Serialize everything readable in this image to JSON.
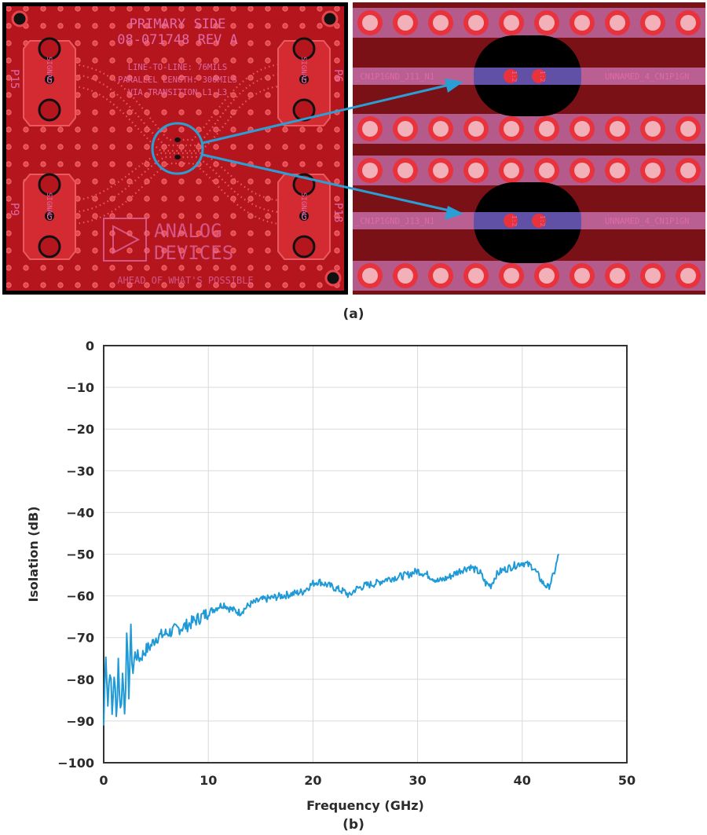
{
  "figure_a": {
    "caption": "(a)",
    "board": {
      "title_line1": "PRIMARY SIDE",
      "title_line2": "08-071748 REV A",
      "spec_line1": "LINE-TO-LINE: 76MILS",
      "spec_line2": "PARALLEL LENGTH: 300MILS",
      "spec_line3": "VIA TRANSITION L1-L3",
      "port_tl": "P15",
      "port_tr": "P6",
      "port_bl": "P9",
      "port_br": "P18",
      "logo_line1": "ANALOG",
      "logo_line2": "DEVICES",
      "bottom_text": "AHEAD OF WHAT'S POSSIBLE",
      "pad_signal": "SIGNAL",
      "pad_g": "G",
      "colors": {
        "board": "#b5161e",
        "silk": "#e06aa6"
      }
    },
    "zoom": {
      "net_top_left": "_CN1P1GND_J11_N1",
      "net_top_right": "UNNAMED_4_CN1P1GN",
      "net_bot_left": "_CN1P1GND_J13_N1",
      "net_bot_right": "UNNAMED_4_CN1P1GN",
      "via_label_1": "1:2",
      "via_label_2": "1:2",
      "colors": {
        "base": "#7a1116",
        "pad": "#e8323c",
        "trace": "#c068a0",
        "arrow": "#2a9fd6"
      }
    }
  },
  "figure_b": {
    "caption": "(b)"
  },
  "chart_data": {
    "type": "line",
    "title": "",
    "xlabel": "Frequency (GHz)",
    "ylabel": "Isolation (dB)",
    "xlim": [
      0,
      50
    ],
    "ylim": [
      -100,
      0
    ],
    "x_ticks": [
      0,
      10,
      20,
      30,
      40,
      50
    ],
    "y_ticks": [
      0,
      -10,
      -20,
      -30,
      -40,
      -50,
      -60,
      -70,
      -80,
      -90,
      -100
    ],
    "x_tick_labels": [
      "0",
      "10",
      "20",
      "30",
      "40",
      "50"
    ],
    "y_tick_labels": [
      "0",
      "−10",
      "−20",
      "−30",
      "−40",
      "−50",
      "−60",
      "−70",
      "−80",
      "−90",
      "−100"
    ],
    "grid": true,
    "legend": "none",
    "series": [
      {
        "color": "#1f9ad6",
        "x": [
          0,
          0.2,
          0.4,
          0.6,
          0.8,
          1.0,
          1.2,
          1.4,
          1.6,
          1.8,
          2.0,
          2.2,
          2.4,
          2.6,
          2.8,
          3.0,
          3.5,
          4,
          4.5,
          5,
          6,
          7,
          8,
          9,
          10,
          11,
          11.5,
          12,
          13,
          14,
          15,
          16,
          17,
          18,
          19,
          20,
          20.5,
          21,
          22,
          23,
          23.5,
          24,
          25,
          26,
          27,
          28,
          29,
          30,
          31,
          32,
          33,
          34,
          35,
          36,
          36.5,
          37,
          37.5,
          38,
          39,
          40,
          41,
          41.5,
          42,
          42.5,
          43,
          43.5
        ],
        "y": [
          -91,
          -72,
          -86,
          -76,
          -89,
          -78,
          -90,
          -75,
          -88,
          -79,
          -86,
          -72,
          -82,
          -70,
          -78,
          -74,
          -75,
          -73,
          -72,
          -70,
          -69,
          -68,
          -67,
          -65.5,
          -64,
          -62.5,
          -62,
          -63,
          -64,
          -62,
          -61,
          -60.5,
          -60,
          -59.5,
          -59,
          -57,
          -56.5,
          -57,
          -58,
          -59,
          -60,
          -58.5,
          -57.5,
          -57,
          -56,
          -55.5,
          -55,
          -54,
          -55,
          -56.5,
          -55.5,
          -54,
          -53,
          -54.5,
          -57,
          -57.5,
          -55,
          -54,
          -53,
          -52,
          -53,
          -55,
          -57,
          -58,
          -55,
          -50
        ]
      }
    ]
  }
}
